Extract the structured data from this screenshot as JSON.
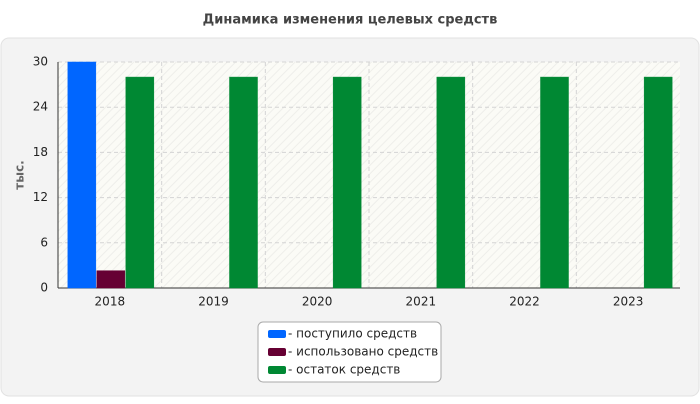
{
  "chart_data": {
    "type": "bar",
    "title": "Динамика изменения целевых средств",
    "y_label": "тыс.",
    "categories": [
      "2018",
      "2019",
      "2020",
      "2021",
      "2022",
      "2023"
    ],
    "series": [
      {
        "name": "- поступило средств",
        "color": "#0066ff",
        "values": [
          30,
          0,
          0,
          0,
          0,
          0
        ]
      },
      {
        "name": "- использовано средств",
        "color": "#660033",
        "values": [
          2.3,
          0,
          0,
          0,
          0,
          0
        ]
      },
      {
        "name": "- остаток средств",
        "color": "#008833",
        "values": [
          28,
          28,
          28,
          28,
          28,
          28
        ]
      }
    ],
    "ylim": [
      0,
      30
    ],
    "yticks": [
      0,
      6,
      12,
      18,
      24,
      30
    ],
    "grid": true
  }
}
